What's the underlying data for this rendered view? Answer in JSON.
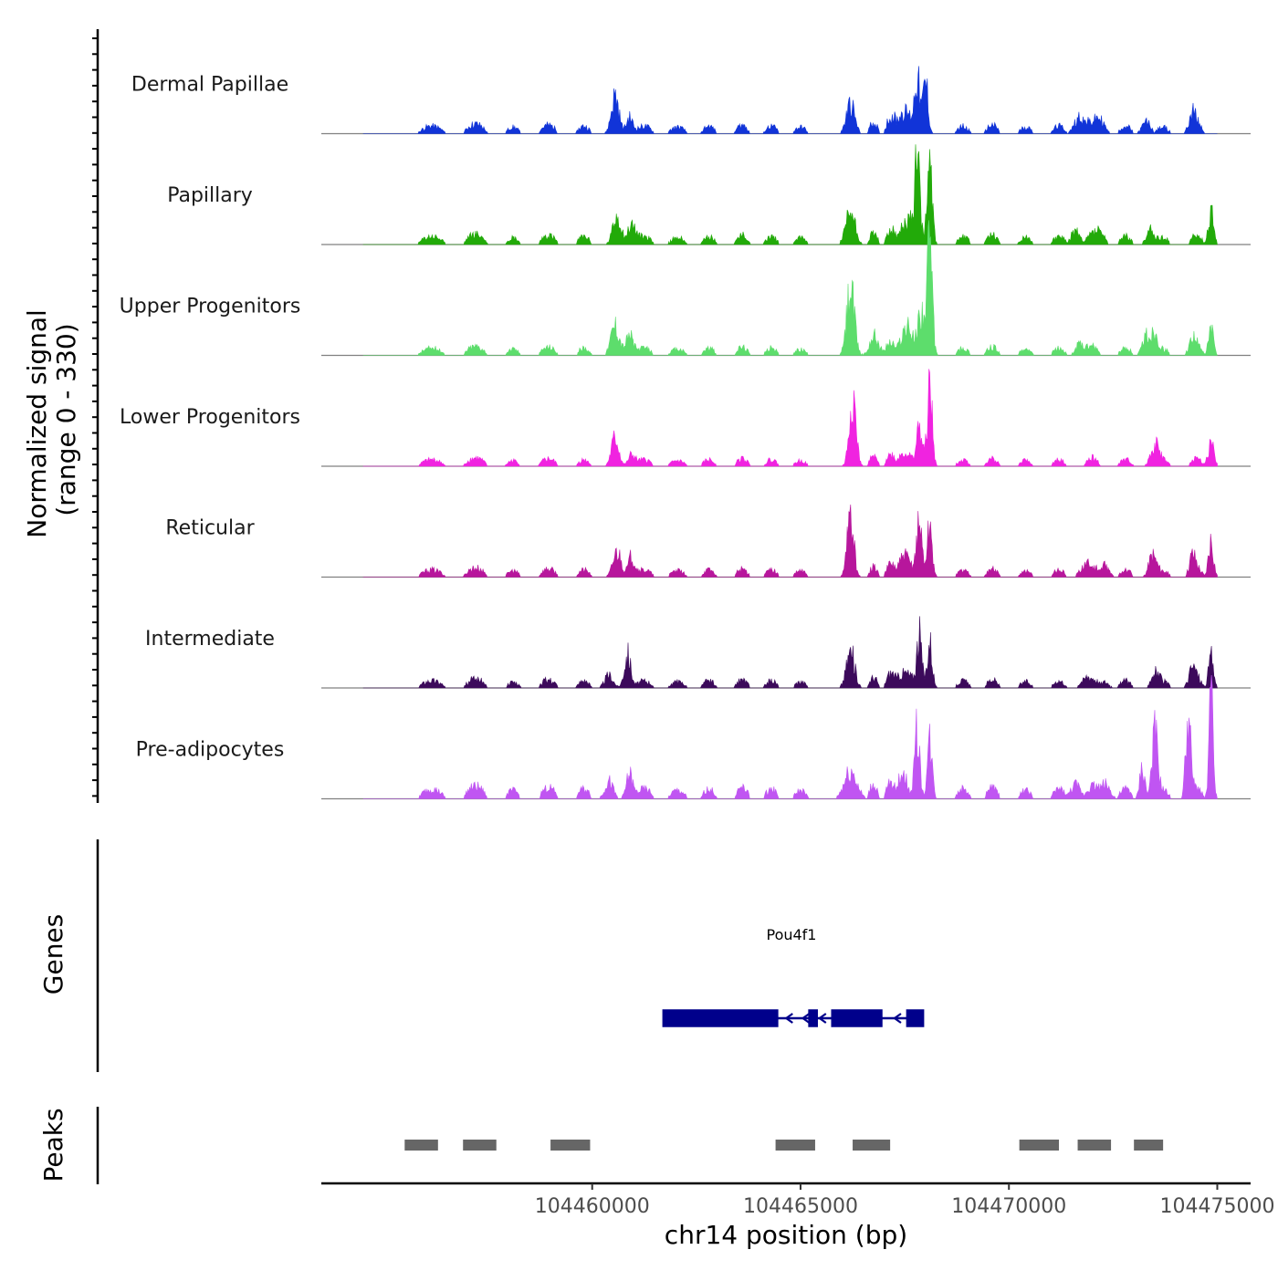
{
  "chart_data": {
    "type": "area",
    "chromosome": "chr14",
    "xlim": [
      104453500,
      104475800
    ],
    "signal_range": [
      0,
      330
    ],
    "y_axis_title_lines": [
      "Normalized signal",
      "(range 0 - 330)"
    ],
    "genes_axis_title": "Genes",
    "peaks_axis_title": "Peaks",
    "x_axis_title": "chr14 position (bp)",
    "x_ticks": [
      {
        "value": 104460000,
        "label": "104460000"
      },
      {
        "value": 104465000,
        "label": "104465000"
      },
      {
        "value": 104470000,
        "label": "104470000"
      },
      {
        "value": 104475000,
        "label": "104475000"
      }
    ],
    "signal_start": 104454500,
    "signal_end": 104475000,
    "background_peaks": [
      [
        104455800,
        104456500,
        14
      ],
      [
        104456900,
        104457500,
        18
      ],
      [
        104457900,
        104458300,
        12
      ],
      [
        104458700,
        104459200,
        16
      ],
      [
        104459600,
        104460000,
        14
      ],
      [
        104461000,
        104461500,
        14
      ],
      [
        104461800,
        104462300,
        12
      ],
      [
        104462600,
        104463000,
        14
      ],
      [
        104463400,
        104463800,
        16
      ],
      [
        104464100,
        104464500,
        14
      ],
      [
        104464800,
        104465200,
        12
      ],
      [
        104466600,
        104466900,
        20
      ],
      [
        104467000,
        104467300,
        22
      ],
      [
        104468700,
        104469100,
        14
      ],
      [
        104469400,
        104469800,
        16
      ],
      [
        104470200,
        104470600,
        12
      ],
      [
        104471000,
        104471400,
        14
      ],
      [
        104471800,
        104472200,
        18
      ],
      [
        104472600,
        104473000,
        14
      ],
      [
        104473500,
        104473900,
        12
      ],
      [
        104474300,
        104474700,
        16
      ]
    ],
    "tracks": [
      {
        "name": "Dermal Papillae",
        "color": "#1134d8",
        "scale": 0.58,
        "noise_seed": 11,
        "peaks": [
          [
            104460550,
            70,
            90
          ],
          [
            104460900,
            30,
            80
          ],
          [
            104466200,
            55,
            100
          ],
          [
            104467500,
            40,
            200
          ],
          [
            104467800,
            95,
            60
          ],
          [
            104468000,
            95,
            60
          ],
          [
            104471700,
            32,
            120
          ],
          [
            104472200,
            25,
            100
          ],
          [
            104473300,
            22,
            100
          ],
          [
            104474400,
            28,
            90
          ]
        ]
      },
      {
        "name": "Papillary",
        "color": "#22aa09",
        "scale": 0.62,
        "noise_seed": 23,
        "peaks": [
          [
            104460600,
            50,
            100
          ],
          [
            104460950,
            35,
            90
          ],
          [
            104466200,
            60,
            110
          ],
          [
            104467600,
            40,
            200
          ],
          [
            104467800,
            120,
            60
          ],
          [
            104468100,
            135,
            60
          ],
          [
            104471600,
            25,
            100
          ],
          [
            104472200,
            20,
            100
          ],
          [
            104473400,
            28,
            90
          ],
          [
            104474850,
            60,
            60
          ]
        ]
      },
      {
        "name": "Upper Progenitors",
        "color": "#5ddd6c",
        "scale": 0.55,
        "noise_seed": 37,
        "peaks": [
          [
            104460550,
            60,
            100
          ],
          [
            104460900,
            40,
            90
          ],
          [
            104466200,
            135,
            90
          ],
          [
            104466800,
            20,
            150
          ],
          [
            104467550,
            55,
            150
          ],
          [
            104467900,
            85,
            80
          ],
          [
            104468100,
            215,
            60
          ],
          [
            104471700,
            22,
            100
          ],
          [
            104473300,
            40,
            90
          ],
          [
            104473500,
            45,
            70
          ],
          [
            104474400,
            22,
            90
          ],
          [
            104474850,
            52,
            60
          ]
        ]
      },
      {
        "name": "Lower Progenitors",
        "color": "#f023e0",
        "scale": 0.5,
        "noise_seed": 41,
        "peaks": [
          [
            104460550,
            60,
            90
          ],
          [
            104460950,
            25,
            80
          ],
          [
            104466250,
            155,
            80
          ],
          [
            104467500,
            30,
            150
          ],
          [
            104467850,
            80,
            70
          ],
          [
            104468100,
            165,
            60
          ],
          [
            104473500,
            45,
            100
          ],
          [
            104474850,
            50,
            70
          ]
        ]
      },
      {
        "name": "Reticular",
        "color": "#b7169c",
        "scale": 0.55,
        "noise_seed": 53,
        "peaks": [
          [
            104460600,
            50,
            100
          ],
          [
            104460950,
            40,
            80
          ],
          [
            104466200,
            115,
            80
          ],
          [
            104467500,
            40,
            150
          ],
          [
            104467850,
            100,
            70
          ],
          [
            104468100,
            100,
            60
          ],
          [
            104471800,
            22,
            100
          ],
          [
            104472300,
            22,
            100
          ],
          [
            104473450,
            45,
            90
          ],
          [
            104474400,
            35,
            80
          ],
          [
            104474850,
            75,
            60
          ]
        ]
      },
      {
        "name": "Intermediate",
        "color": "#3c0a5b",
        "scale": 0.55,
        "noise_seed": 67,
        "peaks": [
          [
            104460400,
            25,
            100
          ],
          [
            104460850,
            65,
            80
          ],
          [
            104466200,
            70,
            100
          ],
          [
            104467500,
            30,
            200
          ],
          [
            104467850,
            95,
            60
          ],
          [
            104468100,
            90,
            60
          ],
          [
            104471800,
            15,
            100
          ],
          [
            104472300,
            12,
            100
          ],
          [
            104473500,
            30,
            90
          ],
          [
            104474400,
            30,
            90
          ],
          [
            104474850,
            60,
            60
          ]
        ]
      },
      {
        "name": "Pre-adipocytes",
        "color": "#c055f2",
        "scale": 0.75,
        "noise_seed": 79,
        "peaks": [
          [
            104460400,
            25,
            100
          ],
          [
            104460900,
            35,
            80
          ],
          [
            104466200,
            40,
            150
          ],
          [
            104467450,
            40,
            100
          ],
          [
            104467800,
            100,
            60
          ],
          [
            104468100,
            80,
            60
          ],
          [
            104471600,
            20,
            120
          ],
          [
            104472300,
            22,
            120
          ],
          [
            104473200,
            45,
            60
          ],
          [
            104473500,
            90,
            70
          ],
          [
            104474300,
            110,
            60
          ],
          [
            104474850,
            140,
            50
          ]
        ]
      }
    ],
    "gene": {
      "name": "Pou4f1",
      "strand": "-",
      "start": 104461700,
      "end": 104467950,
      "exons": [
        [
          104461700,
          104464450
        ],
        [
          104465200,
          104465400
        ],
        [
          104465750,
          104466950
        ],
        [
          104467550,
          104467950
        ]
      ],
      "arrows_at": [
        104464700,
        104465100,
        104465500,
        104467300
      ],
      "color": "#00008b"
    },
    "peaks": [
      [
        104455500,
        104456300
      ],
      [
        104456900,
        104457700
      ],
      [
        104459000,
        104459950
      ],
      [
        104464400,
        104465350
      ],
      [
        104466250,
        104467150
      ],
      [
        104470250,
        104471200
      ],
      [
        104471650,
        104472450
      ],
      [
        104473000,
        104473700
      ]
    ],
    "peak_color": "#666666"
  }
}
